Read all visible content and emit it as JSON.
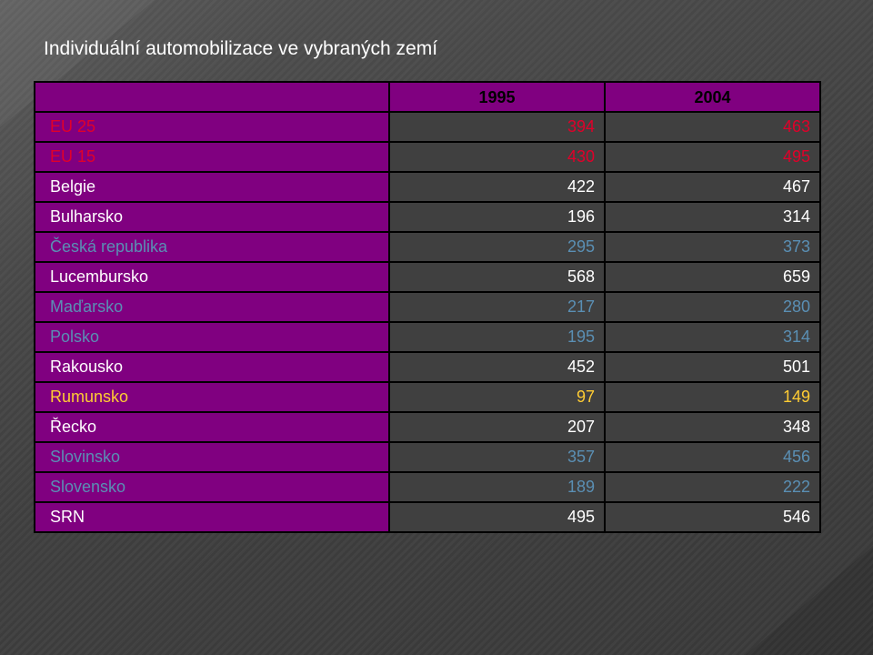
{
  "title": "Individuální automobilizace ve vybraných zemí",
  "table": {
    "header": {
      "empty": "",
      "col1": "1995",
      "col2": "2004"
    },
    "rows": [
      {
        "name": "EU 25",
        "v1995": "394",
        "v2004": "463",
        "color": "#e0002a"
      },
      {
        "name": "EU 15",
        "v1995": "430",
        "v2004": "495",
        "color": "#e0002a"
      },
      {
        "name": "Belgie",
        "v1995": "422",
        "v2004": "467",
        "color": "#ffffff"
      },
      {
        "name": "Bulharsko",
        "v1995": "196",
        "v2004": "314",
        "color": "#ffffff"
      },
      {
        "name": "Česká republika",
        "v1995": "295",
        "v2004": "373",
        "color": "#5a8fb4"
      },
      {
        "name": "Lucembursko",
        "v1995": "568",
        "v2004": "659",
        "color": "#ffffff"
      },
      {
        "name": "Maďarsko",
        "v1995": "217",
        "v2004": "280",
        "color": "#5a8fb4"
      },
      {
        "name": "Polsko",
        "v1995": "195",
        "v2004": "314",
        "color": "#5a8fb4"
      },
      {
        "name": "Rakousko",
        "v1995": "452",
        "v2004": "501",
        "color": "#ffffff"
      },
      {
        "name": "Rumunsko",
        "v1995": "97",
        "v2004": "149",
        "color": "#ffcc33"
      },
      {
        "name": "Řecko",
        "v1995": "207",
        "v2004": "348",
        "color": "#ffffff"
      },
      {
        "name": "Slovinsko",
        "v1995": "357",
        "v2004": "456",
        "color": "#5a8fb4"
      },
      {
        "name": "Slovensko",
        "v1995": "189",
        "v2004": "222",
        "color": "#5a8fb4"
      },
      {
        "name": "SRN",
        "v1995": "495",
        "v2004": "546",
        "color": "#ffffff"
      }
    ]
  },
  "colors": {
    "table_header_bg": "#800080",
    "name_cell_bg": "#800080",
    "value_cell_bg": "#404040",
    "background": "#454545"
  }
}
